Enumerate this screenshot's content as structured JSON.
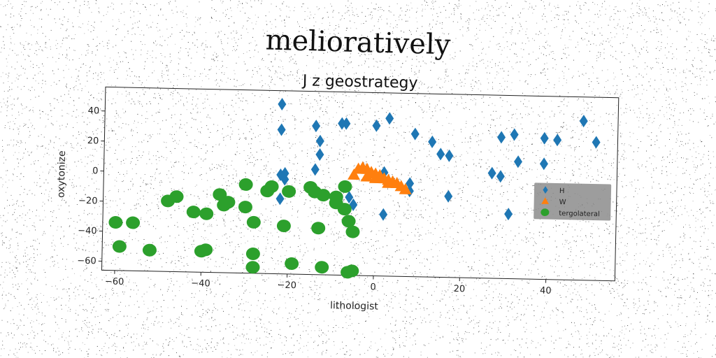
{
  "suptitle": "melioratively",
  "chart_data": {
    "type": "scatter",
    "title": "J z geostrategy",
    "xlabel": "lithologist",
    "ylabel": "oxytonize",
    "xlim": [
      -63,
      56
    ],
    "ylim": [
      -66,
      56
    ],
    "xticks": [
      -60,
      -40,
      -20,
      0,
      20,
      40
    ],
    "yticks": [
      -60,
      -40,
      -20,
      0,
      20,
      40
    ],
    "tick_labels_x": [
      "−60",
      "−40",
      "−20",
      "0",
      "20",
      "40"
    ],
    "tick_labels_y": [
      "−60",
      "−40",
      "−20",
      "0",
      "20",
      "40"
    ],
    "grid": false,
    "legend_position": "center-right",
    "series": [
      {
        "name": "H",
        "marker": "diamond",
        "color": "#1f77b4",
        "points": [
          [
            -22,
            47
          ],
          [
            -22,
            30
          ],
          [
            -14,
            33
          ],
          [
            -13,
            23
          ],
          [
            -13,
            14
          ],
          [
            -14,
            4
          ],
          [
            -8,
            35
          ],
          [
            -7,
            35
          ],
          [
            0,
            34
          ],
          [
            3,
            39
          ],
          [
            9,
            29
          ],
          [
            13,
            24
          ],
          [
            15,
            16
          ],
          [
            17,
            15
          ],
          [
            27,
            4
          ],
          [
            29,
            28
          ],
          [
            29,
            2
          ],
          [
            32,
            30
          ],
          [
            33,
            12
          ],
          [
            39,
            28
          ],
          [
            39,
            11
          ],
          [
            42,
            27
          ],
          [
            48,
            40
          ],
          [
            51,
            26
          ],
          [
            -22,
            0
          ],
          [
            -21,
            1
          ],
          [
            -21,
            -3
          ],
          [
            -22,
            -16
          ],
          [
            -6,
            -14
          ],
          [
            -5,
            -19
          ],
          [
            2,
            3
          ],
          [
            2,
            -25
          ],
          [
            8,
            -4
          ],
          [
            8,
            -9
          ],
          [
            17,
            -12
          ],
          [
            31,
            -23
          ]
        ]
      },
      {
        "name": "W",
        "marker": "triangle",
        "color": "#ff7f0e",
        "points": [
          [
            -5,
            1
          ],
          [
            -4,
            5
          ],
          [
            -3,
            6
          ],
          [
            -2,
            5
          ],
          [
            -1,
            3
          ],
          [
            0,
            2
          ],
          [
            1,
            1
          ],
          [
            2,
            -1
          ],
          [
            3,
            -2
          ],
          [
            4,
            -3
          ],
          [
            5,
            -4
          ],
          [
            6,
            -6
          ],
          [
            7,
            -8
          ],
          [
            -2,
            0
          ],
          [
            0,
            -1
          ],
          [
            3,
            -4
          ]
        ]
      },
      {
        "name": "tergolateral",
        "marker": "circle",
        "color": "#2ca02c",
        "points": [
          [
            -60,
            -34
          ],
          [
            -56,
            -34
          ],
          [
            -59,
            -50
          ],
          [
            -52,
            -52
          ],
          [
            -48,
            -19
          ],
          [
            -46,
            -16
          ],
          [
            -42,
            -26
          ],
          [
            -39,
            -27
          ],
          [
            -40,
            -52
          ],
          [
            -39,
            -51
          ],
          [
            -36,
            -14
          ],
          [
            -35,
            -21
          ],
          [
            -34,
            -19
          ],
          [
            -30,
            -7
          ],
          [
            -30,
            -22
          ],
          [
            -28,
            -32
          ],
          [
            -28,
            -53
          ],
          [
            -28,
            -62
          ],
          [
            -25,
            -11
          ],
          [
            -24,
            -8
          ],
          [
            -21,
            -34
          ],
          [
            -20,
            -11
          ],
          [
            -19,
            -59
          ],
          [
            -15,
            -8
          ],
          [
            -14,
            -11
          ],
          [
            -13,
            -35
          ],
          [
            -12,
            -13
          ],
          [
            -12,
            -61
          ],
          [
            -9,
            -14
          ],
          [
            -9,
            -18
          ],
          [
            -7,
            -7
          ],
          [
            -7,
            -22
          ],
          [
            -6,
            -64
          ],
          [
            -6,
            -30
          ],
          [
            -5,
            -37
          ],
          [
            -5,
            -63
          ]
        ]
      }
    ]
  }
}
